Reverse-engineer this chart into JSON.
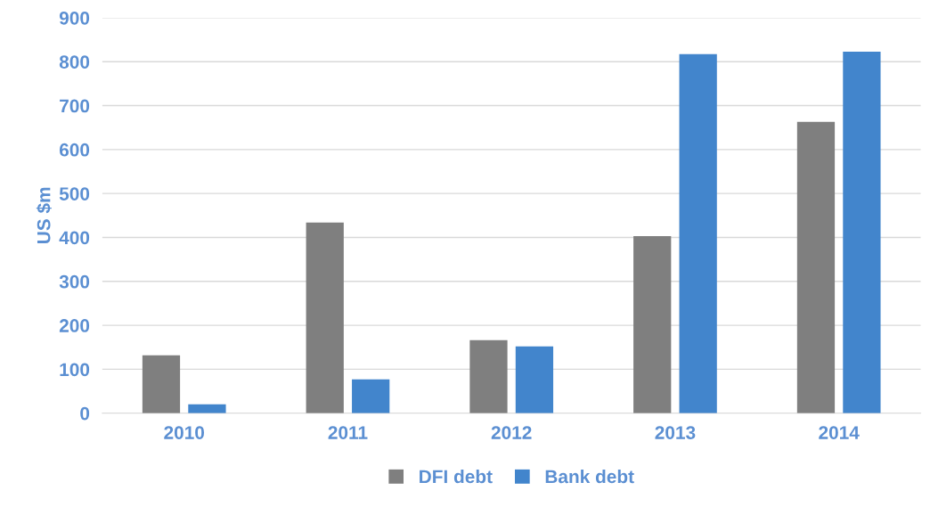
{
  "chart_data": {
    "type": "bar",
    "ylabel": "US $m",
    "categories": [
      "2010",
      "2011",
      "2012",
      "2013",
      "2014"
    ],
    "series": [
      {
        "name": "DFI debt",
        "color": "#7f7f7f",
        "values": [
          132,
          434,
          166,
          403,
          663
        ]
      },
      {
        "name": "Bank debt",
        "color": "#4285cc",
        "values": [
          20,
          77,
          152,
          817,
          823
        ]
      }
    ],
    "ylim": [
      0,
      900
    ],
    "yticks": [
      0,
      100,
      200,
      300,
      400,
      500,
      600,
      700,
      800,
      900
    ],
    "grid": "y",
    "legend": "bottom"
  }
}
